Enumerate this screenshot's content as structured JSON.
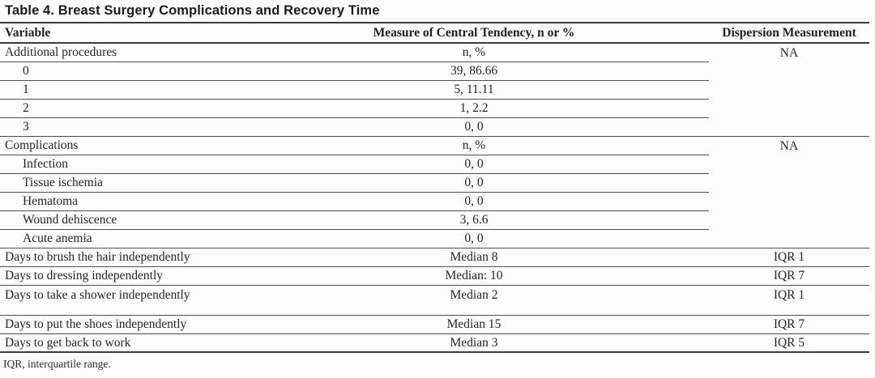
{
  "table": {
    "title": "Table 4. Breast Surgery Complications and Recovery Time",
    "columns": [
      "Variable",
      "Measure of Central Tendency, n or %",
      "Dispersion Measurement"
    ],
    "rows": [
      {
        "variable": "Additional procedures",
        "indent": false,
        "measure": "n, %",
        "dispersion": "NA",
        "rule": "partial"
      },
      {
        "variable": "0",
        "indent": true,
        "measure": "39, 86.66",
        "dispersion": "",
        "rule": "partial"
      },
      {
        "variable": "1",
        "indent": true,
        "measure": "5, 11.11",
        "dispersion": "",
        "rule": "partial"
      },
      {
        "variable": "2",
        "indent": true,
        "measure": "1, 2.2",
        "dispersion": "",
        "rule": "partial"
      },
      {
        "variable": "3",
        "indent": true,
        "measure": "0, 0",
        "dispersion": "",
        "rule": "full"
      },
      {
        "variable": "Complications",
        "indent": false,
        "measure": "n, %",
        "dispersion": "NA",
        "rule": "partial"
      },
      {
        "variable": "Infection",
        "indent": true,
        "measure": "0, 0",
        "dispersion": "",
        "rule": "partial"
      },
      {
        "variable": "Tissue ischemia",
        "indent": true,
        "measure": "0, 0",
        "dispersion": "",
        "rule": "partial"
      },
      {
        "variable": "Hematoma",
        "indent": true,
        "measure": "0, 0",
        "dispersion": "",
        "rule": "partial"
      },
      {
        "variable": "Wound dehiscence",
        "indent": true,
        "measure": "3, 6.6",
        "dispersion": "",
        "rule": "partial"
      },
      {
        "variable": "Acute anemia",
        "indent": true,
        "measure": "0, 0",
        "dispersion": "",
        "rule": "full"
      },
      {
        "variable": "Days to brush the hair independently",
        "indent": false,
        "measure": "Median 8",
        "dispersion": "IQR 1",
        "rule": "full"
      },
      {
        "variable": "Days to dressing independently",
        "indent": false,
        "measure": "Median: 10",
        "dispersion": "IQR 7",
        "rule": "full"
      },
      {
        "variable": "Days to take a shower independently",
        "indent": false,
        "measure": "Median 2",
        "dispersion": "IQR 1",
        "rule": "none"
      },
      {
        "spacer": true
      },
      {
        "variable": "Days to put the shoes independently",
        "indent": false,
        "measure": "Median 15",
        "dispersion": "IQR 7",
        "rule": "full"
      },
      {
        "variable": "Days to get back to work",
        "indent": false,
        "measure": "Median 3",
        "dispersion": "IQR 5",
        "rule": "thick"
      }
    ],
    "footnote": "IQR, interquartile range."
  }
}
